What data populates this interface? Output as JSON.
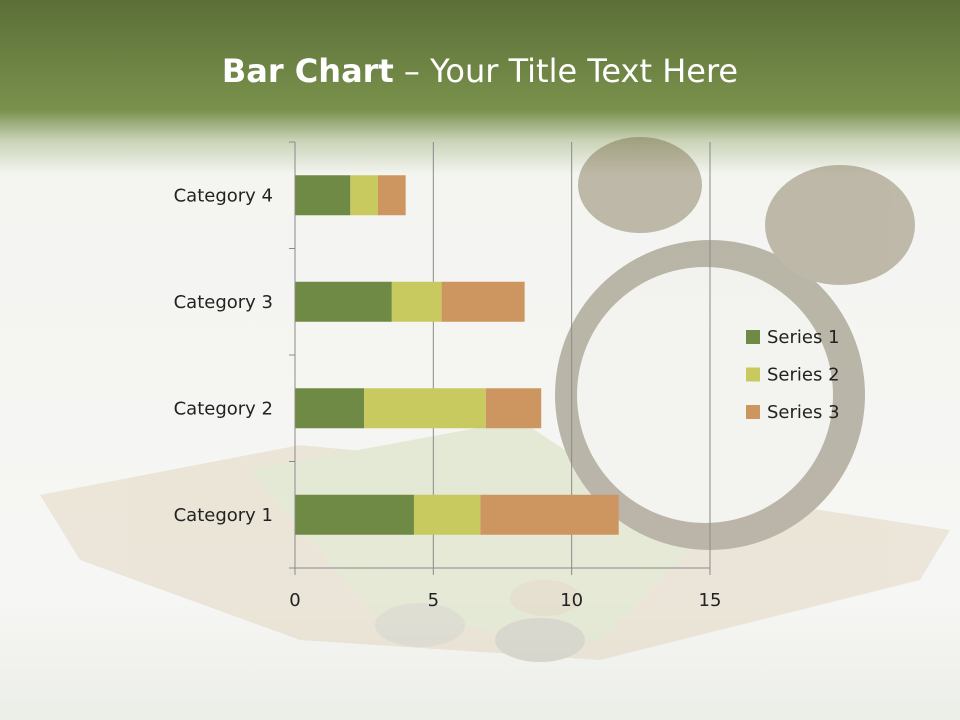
{
  "slide": {
    "title_bold": "Bar Chart",
    "title_rest": " – Your Title Text Here"
  },
  "chart_data": {
    "type": "bar",
    "orientation": "horizontal",
    "stacked": true,
    "categories": [
      "Category 1",
      "Category 2",
      "Category 3",
      "Category 4"
    ],
    "series": [
      {
        "name": "Series 1",
        "values": [
          4.3,
          2.5,
          3.5,
          2.0
        ],
        "color": "#6f8a45"
      },
      {
        "name": "Series 2",
        "values": [
          2.4,
          4.4,
          1.8,
          1.0
        ],
        "color": "#c8c95e"
      },
      {
        "name": "Series 3",
        "values": [
          5.0,
          2.0,
          3.0,
          1.0
        ],
        "color": "#cd9660"
      }
    ],
    "xlim": [
      0,
      15
    ],
    "xticks": [
      "0",
      "5",
      "10",
      "15"
    ],
    "grid": true,
    "legend": "right"
  }
}
